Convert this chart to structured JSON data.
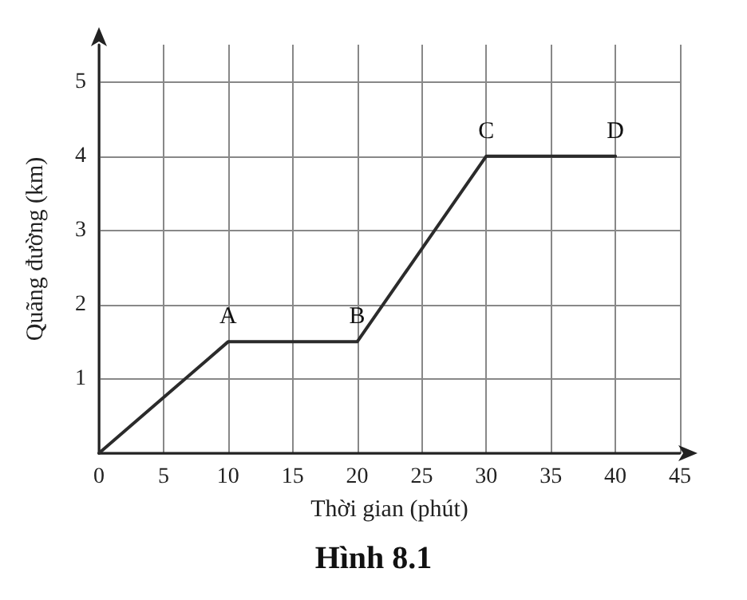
{
  "chart_data": {
    "type": "line",
    "xlabel": "Thời gian (phút)",
    "ylabel": "Quãng đường (km)",
    "x": [
      0,
      10,
      20,
      30,
      40
    ],
    "series": [
      {
        "color": "#2b2b2b",
        "values": [
          0,
          1.5,
          1.5,
          4,
          4
        ]
      }
    ],
    "xlim": [
      0,
      45
    ],
    "xticks": [
      0,
      5,
      10,
      15,
      20,
      25,
      30,
      35,
      40,
      45
    ],
    "ylim": [
      0,
      5.5
    ],
    "yticks": [
      {
        "value": 0,
        "label": null
      },
      1,
      2,
      3,
      4,
      5
    ],
    "grid": true,
    "marker": "none",
    "line_style": "solid",
    "annotations": [
      {
        "text": "A",
        "x": 10,
        "y": 1.5
      },
      {
        "text": "B",
        "x": 20,
        "y": 1.5
      },
      {
        "text": "C",
        "x": 30,
        "y": 4
      },
      {
        "text": "D",
        "x": 40,
        "y": 4
      },
      "Hình 8.1"
    ]
  }
}
